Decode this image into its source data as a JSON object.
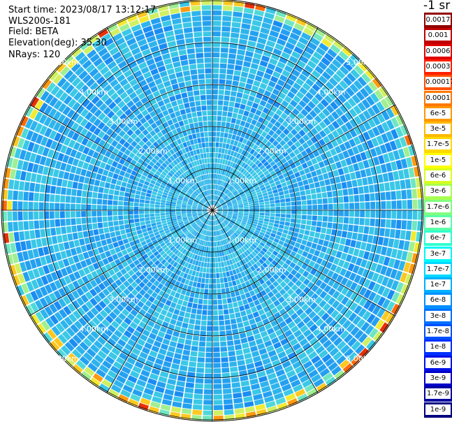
{
  "header": {
    "start_time": "Start time: 2023/08/17 13:12:17",
    "device": "WLS200s-181",
    "field": "Field: BETA",
    "elevation": "Elevation(deg): 35.30",
    "nrays": "NRays: 120"
  },
  "colorbar": {
    "unit": "-1 sr",
    "labels": [
      "0.0017",
      "0.001",
      "0.0006",
      "0.0003",
      "0.00017",
      "0.0001",
      "6e-5",
      "3e-5",
      "1.7e-5",
      "1e-5",
      "6e-6",
      "3e-6",
      "1.7e-6",
      "1e-6",
      "6e-7",
      "3e-7",
      "1.7e-7",
      "1e-7",
      "6e-8",
      "3e-8",
      "1.7e-8",
      "1e-8",
      "6e-9",
      "3e-9",
      "1.7e-9",
      "1e-9"
    ],
    "colors": [
      "#900000",
      "#c00000",
      "#e00000",
      "#ff2000",
      "#ff5000",
      "#ff7800",
      "#ff9800",
      "#ffb800",
      "#ffd800",
      "#ffff00",
      "#d8ff20",
      "#a8ff50",
      "#80ff80",
      "#58ffa8",
      "#30ffd0",
      "#00f8f8",
      "#00d8ff",
      "#00b0ff",
      "#0090ff",
      "#0070ff",
      "#0050ff",
      "#0030ff",
      "#0010e8",
      "#0000c8",
      "#0000a0",
      "#000080"
    ]
  },
  "range_rings": {
    "labels": [
      "1.00km",
      "2.00km",
      "3.00km",
      "4.00km",
      "5.00km"
    ]
  },
  "chart_data": {
    "type": "heatmap",
    "projection": "polar (PPI scan)",
    "field": "BETA",
    "n_rays": 120,
    "elevation_deg": 35.3,
    "range_rings_km": [
      1,
      2,
      3,
      4,
      5
    ],
    "value_scale": "log",
    "value_range": [
      1e-09,
      0.0017
    ],
    "description_of_values": "backscatter mostly 1e-8 to 3e-8 (blue), rising to ~3e-6..1e-5 at the outermost ranges"
  }
}
